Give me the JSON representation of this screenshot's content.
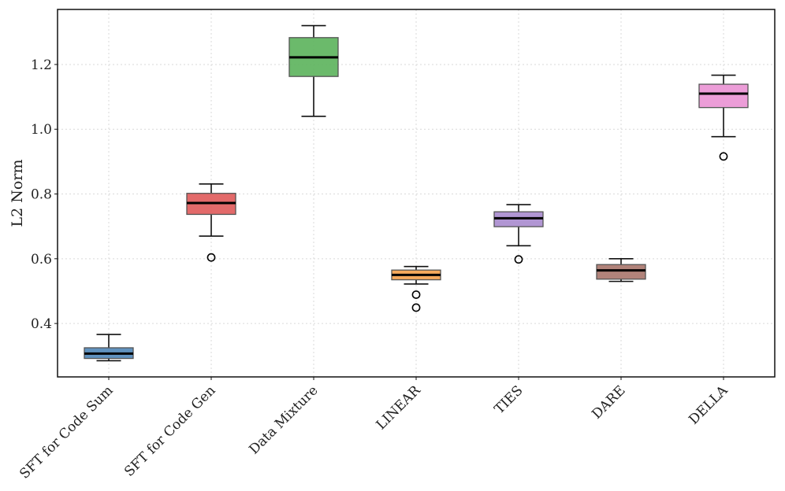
{
  "chart_data": {
    "type": "box",
    "title": "",
    "xlabel": "",
    "ylabel": "L2 Norm",
    "ylim": [
      0.235,
      1.37
    ],
    "yticks": [
      0.4,
      0.6,
      0.8,
      1.0,
      1.2
    ],
    "ytick_labels": [
      "0.4",
      "0.6",
      "0.8",
      "1.0",
      "1.2"
    ],
    "grid": true,
    "categories": [
      "SFT for Code Sum",
      "SFT for Code Gen",
      "Data Mixture",
      "LINEAR",
      "TIES",
      "DARE",
      "DELLA"
    ],
    "colors": [
      "#4f86b8",
      "#e05a5a",
      "#5bb35b",
      "#f4a04a",
      "#a98bce",
      "#a8756b",
      "#ea92d4"
    ],
    "boxes": [
      {
        "whisker_low": 0.285,
        "q1": 0.292,
        "median": 0.307,
        "q3": 0.325,
        "whisker_high": 0.366,
        "outliers": []
      },
      {
        "whisker_low": 0.67,
        "q1": 0.737,
        "median": 0.772,
        "q3": 0.802,
        "whisker_high": 0.831,
        "outliers": [
          0.604
        ]
      },
      {
        "whisker_low": 1.04,
        "q1": 1.163,
        "median": 1.222,
        "q3": 1.283,
        "whisker_high": 1.32,
        "outliers": []
      },
      {
        "whisker_low": 0.522,
        "q1": 0.535,
        "median": 0.55,
        "q3": 0.565,
        "whisker_high": 0.576,
        "outliers": [
          0.489,
          0.449
        ]
      },
      {
        "whisker_low": 0.64,
        "q1": 0.699,
        "median": 0.725,
        "q3": 0.745,
        "whisker_high": 0.767,
        "outliers": [
          0.598
        ]
      },
      {
        "whisker_low": 0.53,
        "q1": 0.537,
        "median": 0.564,
        "q3": 0.582,
        "whisker_high": 0.6,
        "outliers": []
      },
      {
        "whisker_low": 0.977,
        "q1": 1.067,
        "median": 1.11,
        "q3": 1.139,
        "whisker_high": 1.167,
        "outliers": [
          0.916
        ]
      }
    ]
  }
}
